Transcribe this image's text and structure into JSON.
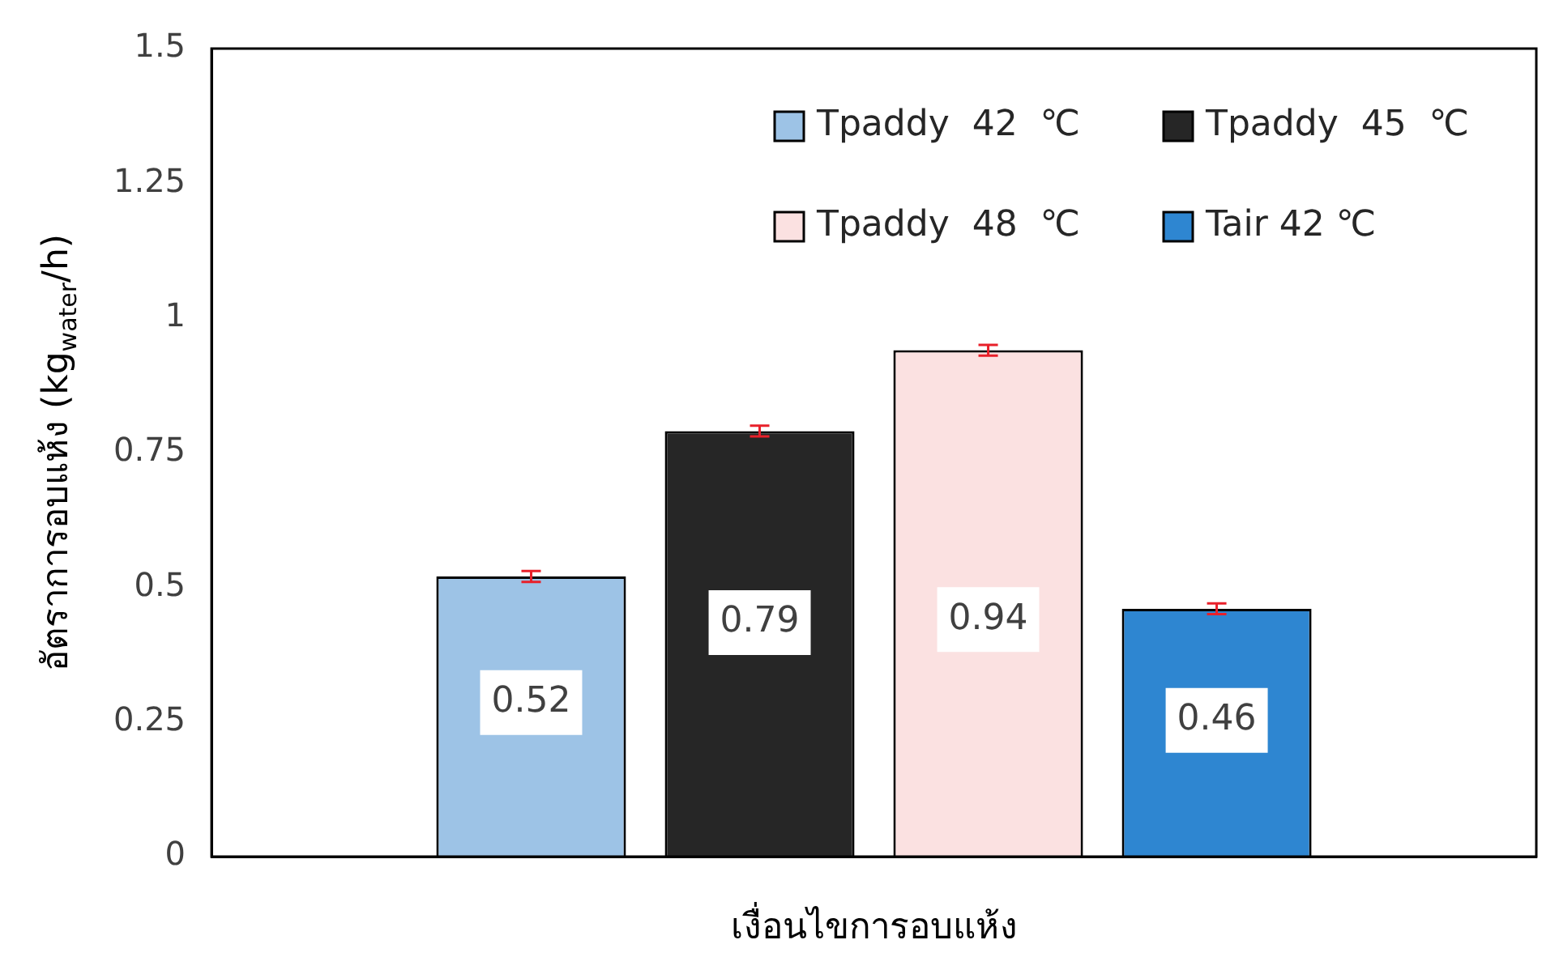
{
  "chart_data": {
    "type": "bar",
    "xlabel": "เงื่อนไขการอบแห้ง",
    "ylabel": "อัตราการอบแห้ง (kg$_{water}$/h)",
    "categories": [
      null
    ],
    "series": [
      {
        "name": "Tpaddy  42  ℃",
        "color": "#9dc3e6",
        "values": [
          0.52
        ],
        "errors": [
          0.01
        ]
      },
      {
        "name": "Tpaddy  45  ℃",
        "color": "#262626",
        "values": [
          0.79
        ],
        "errors": [
          0.01
        ]
      },
      {
        "name": "Tpaddy  48  ℃",
        "color": "#fbe1e1",
        "values": [
          0.94
        ],
        "errors": [
          0.01
        ]
      },
      {
        "name": "Tair 42 ℃",
        "color": "#2e86d1",
        "values": [
          0.46
        ],
        "errors": [
          0.01
        ]
      }
    ],
    "data_labels": true,
    "ylim": [
      0,
      1.5
    ],
    "yticks": [
      0,
      0.25,
      0.5,
      0.75,
      1,
      1.25,
      1.5
    ],
    "grid": false,
    "legend": "top right"
  }
}
